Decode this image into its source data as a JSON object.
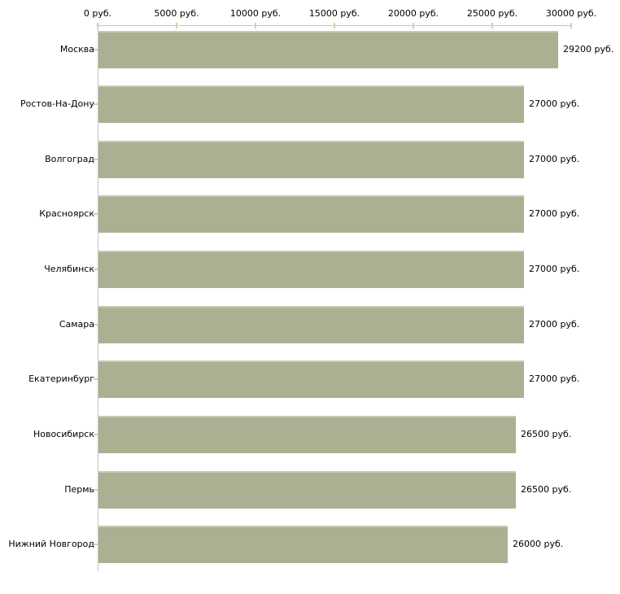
{
  "chart_data": {
    "type": "bar",
    "orientation": "horizontal",
    "title": "",
    "xlabel": "",
    "ylabel": "",
    "x_axis_position": "top",
    "xlim": [
      0,
      30000
    ],
    "grid": false,
    "legend": null,
    "x_ticks": [
      {
        "value": 0,
        "label": "0 руб."
      },
      {
        "value": 5000,
        "label": "5000 руб."
      },
      {
        "value": 10000,
        "label": "10000 руб."
      },
      {
        "value": 15000,
        "label": "15000 руб."
      },
      {
        "value": 20000,
        "label": "20000 руб."
      },
      {
        "value": 25000,
        "label": "25000 руб."
      },
      {
        "value": 30000,
        "label": "30000 руб."
      }
    ],
    "categories": [
      "Москва",
      "Ростов-На-Дону",
      "Волгоград",
      "Красноярск",
      "Челябинск",
      "Самара",
      "Екатеринбург",
      "Новосибирск",
      "Пермь",
      "Нижний Новгород"
    ],
    "values": [
      29200,
      27000,
      27000,
      27000,
      27000,
      27000,
      27000,
      26500,
      26500,
      26000
    ],
    "bars": [
      {
        "category": "Москва",
        "value": 29200,
        "value_label": "29200 руб."
      },
      {
        "category": "Ростов-На-Дону",
        "value": 27000,
        "value_label": "27000 руб."
      },
      {
        "category": "Волгоград",
        "value": 27000,
        "value_label": "27000 руб."
      },
      {
        "category": "Красноярск",
        "value": 27000,
        "value_label": "27000 руб."
      },
      {
        "category": "Челябинск",
        "value": 27000,
        "value_label": "27000 руб."
      },
      {
        "category": "Самара",
        "value": 27000,
        "value_label": "27000 руб."
      },
      {
        "category": "Екатеринбург",
        "value": 27000,
        "value_label": "27000 руб."
      },
      {
        "category": "Новосибирск",
        "value": 26500,
        "value_label": "26500 руб."
      },
      {
        "category": "Пермь",
        "value": 26500,
        "value_label": "26500 руб."
      },
      {
        "category": "Нижний Новгород",
        "value": 26000,
        "value_label": "26000 руб."
      }
    ],
    "colors": {
      "bar_fill": "#aab193",
      "bar_top_highlight": "#c6cab2",
      "axis_line": "#c6c6c6",
      "tick_mark": "#d2d0a6",
      "text": "#000000",
      "background": "#ffffff"
    }
  }
}
